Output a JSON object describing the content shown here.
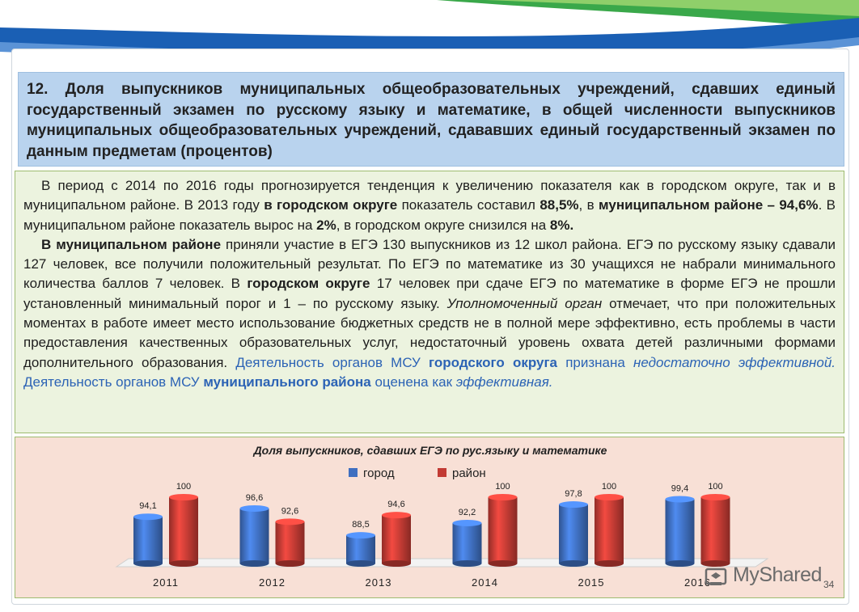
{
  "title": "12. Доля выпускников муниципальных общеобразовательных учреждений, сдавших единый государственный экзамен по русскому языку и математике, в общей численности выпускников муниципальных общеобразовательных учреждений, сдававших единый государственный экзамен по данным предметам (процентов)",
  "body": {
    "p1": {
      "t1": "В период с 2014 по 2016 годы прогнозируется тенденция к увеличению показателя как в городском округе, так и в муниципальном районе.  В 2013 году ",
      "b1": "в городском округе",
      "t2": " показатель составил ",
      "b2": "88,5%",
      "t3": ", в ",
      "b3": "муниципальном районе – 94,6%",
      "t4": ". В муниципальном районе показатель вырос на ",
      "b4": "2%",
      "t5": ", в городском округе снизился на ",
      "b5": "8%."
    },
    "p2": {
      "b1": "В муниципальном районе",
      "t1": " приняли участие в ЕГЭ 130 выпускников из 12 школ района. ЕГЭ по русскому языку сдавали 127 человек, все получили положительный результат. По ЕГЭ  по математике из 30 учащихся не набрали минимального количества баллов 7 человек. В ",
      "b2": "городском округе",
      "t2": " 17 человек при сдаче ЕГЭ по математике в форме ЕГЭ не прошли установленный минимальный порог и 1 – по русскому языку. ",
      "i1": "Уполномоченный орган",
      "t3": " отмечает, что при положительных моментах в работе имеет место использование бюджетных средств не в полной мере эффективно, есть проблемы в части предоставления качественных образовательных услуг, недостаточный уровень охвата детей различными формами дополнительного образования. ",
      "c1": "Деятельность органов МСУ ",
      "c2": "городского округа",
      "c3": " признана ",
      "c4": "недостаточно эффективной.",
      "c5": "  Деятельность  органов МСУ ",
      "c6": "муниципального района",
      "c7": " оценена как ",
      "c8": "эффективная."
    }
  },
  "chart_data": {
    "type": "bar",
    "title": "Доля выпускников, сдавших ЕГЭ по рус.языку и математике",
    "categories": [
      "2011",
      "2012",
      "2013",
      "2014",
      "2015",
      "2016"
    ],
    "series": [
      {
        "name": "город",
        "values": [
          94.1,
          96.6,
          88.5,
          92.2,
          97.8,
          99.4
        ],
        "labels": [
          "94,1",
          "96,6",
          "88,5",
          "92,2",
          "97,8",
          "99,4"
        ],
        "color": "#3f6fc0"
      },
      {
        "name": "район",
        "values": [
          100,
          92.6,
          94.6,
          100,
          100,
          100
        ],
        "labels": [
          "100",
          "92,6",
          "94,6",
          "100",
          "100",
          "100"
        ],
        "color": "#c23b34"
      }
    ],
    "ylim": [
      80,
      100
    ],
    "legend": "top-center",
    "grid": false,
    "xlabel": "",
    "ylabel": ""
  },
  "watermark": "MyShared",
  "page_number": "34",
  "colors": {
    "title_bg": "#b9d3ee",
    "body_bg": "#ecf3df",
    "chart_bg": "#f8e0d6",
    "accent_blue": "#2c63b5",
    "swoosh_blue": "#1a5fb4",
    "swoosh_green": "#2e9a3e"
  },
  "icons": {
    "watermark_logo": "mortarboard-icon"
  }
}
